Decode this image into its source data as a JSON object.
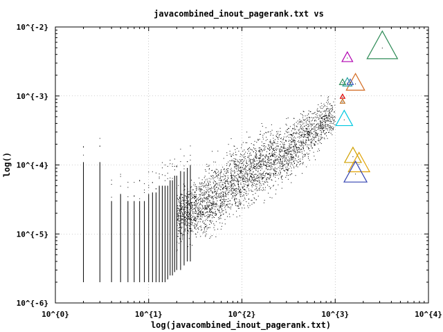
{
  "chart_data": {
    "type": "scatter",
    "title": "javacombined_inout_pagerank.txt vs",
    "xlabel": "log(javacombined_inout_pagerank.txt)",
    "ylabel": "log()",
    "xscale": "log",
    "yscale": "log",
    "xlim": [
      1,
      10000
    ],
    "ylim": [
      1e-06,
      0.01
    ],
    "x_ticks": [
      "10^{0}",
      "10^{1}",
      "10^{2}",
      "10^{3}",
      "10^{4}"
    ],
    "y_ticks": [
      "10^{-6}",
      "10^{-5}",
      "10^{-4}",
      "10^{-3}",
      "10^{-2}"
    ],
    "grid": true,
    "legend": "none",
    "columns": [
      {
        "x": 2,
        "y_min": 2e-06,
        "y_max": 0.00011
      },
      {
        "x": 3,
        "y_min": 2e-06,
        "y_max": 0.00011
      },
      {
        "x": 4,
        "y_min": 2e-06,
        "y_max": 3e-05
      },
      {
        "x": 5,
        "y_min": 2e-06,
        "y_max": 3.8e-05
      },
      {
        "x": 6,
        "y_min": 2e-06,
        "y_max": 3e-05
      },
      {
        "x": 7,
        "y_min": 2e-06,
        "y_max": 3e-05
      },
      {
        "x": 8,
        "y_min": 2e-06,
        "y_max": 3e-05
      },
      {
        "x": 9,
        "y_min": 2e-06,
        "y_max": 3e-05
      },
      {
        "x": 10,
        "y_min": 2e-06,
        "y_max": 3.8e-05
      },
      {
        "x": 11,
        "y_min": 2e-06,
        "y_max": 4e-05
      },
      {
        "x": 12,
        "y_min": 2e-06,
        "y_max": 4e-05
      },
      {
        "x": 13,
        "y_min": 2e-06,
        "y_max": 5e-05
      },
      {
        "x": 14,
        "y_min": 2e-06,
        "y_max": 5e-05
      },
      {
        "x": 15,
        "y_min": 2e-06,
        "y_max": 5e-05
      },
      {
        "x": 16,
        "y_min": 2.2e-06,
        "y_max": 5e-05
      },
      {
        "x": 17,
        "y_min": 2.5e-06,
        "y_max": 6e-05
      },
      {
        "x": 18,
        "y_min": 2.5e-06,
        "y_max": 6e-05
      },
      {
        "x": 19,
        "y_min": 2.8e-06,
        "y_max": 7e-05
      },
      {
        "x": 20,
        "y_min": 3e-06,
        "y_max": 7e-05
      },
      {
        "x": 22,
        "y_min": 3e-06,
        "y_max": 8e-05
      },
      {
        "x": 24,
        "y_min": 3.5e-06,
        "y_max": 8e-05
      },
      {
        "x": 26,
        "y_min": 4e-06,
        "y_max": 9e-05
      },
      {
        "x": 28,
        "y_min": 4e-06,
        "y_max": 0.0001
      }
    ],
    "cloud_band": [
      {
        "x": 20,
        "y_lo": 3e-06,
        "y_hi": 0.0001
      },
      {
        "x": 50,
        "y_lo": 4e-06,
        "y_hi": 0.00025
      },
      {
        "x": 100,
        "y_lo": 1e-05,
        "y_hi": 0.0005
      },
      {
        "x": 300,
        "y_lo": 2.5e-05,
        "y_hi": 0.0009
      },
      {
        "x": 1000,
        "y_lo": 0.0002,
        "y_hi": 0.0016
      }
    ],
    "highlight_points": [
      {
        "x": 3200,
        "y": 0.0055,
        "size": 40,
        "color": "#2e8b57"
      },
      {
        "x": 1350,
        "y": 0.0037,
        "size": 14,
        "color": "#b000b0"
      },
      {
        "x": 1650,
        "y": 0.0016,
        "size": 24,
        "color": "#d2691e"
      },
      {
        "x": 1350,
        "y": 0.0016,
        "size": 12,
        "color": "#22a0a0"
      },
      {
        "x": 1200,
        "y": 0.0016,
        "size": 8,
        "color": "#2e8b57"
      },
      {
        "x": 1450,
        "y": 0.0016,
        "size": 8,
        "color": "#4060c0"
      },
      {
        "x": 1200,
        "y": 0.00099,
        "size": 6,
        "color": "#e00000"
      },
      {
        "x": 1200,
        "y": 0.00084,
        "size": 6,
        "color": "#c07020"
      },
      {
        "x": 1250,
        "y": 0.00048,
        "size": 22,
        "color": "#00c8e0"
      },
      {
        "x": 1800,
        "y": 0.00011,
        "size": 28,
        "color": "#e0a000"
      },
      {
        "x": 1550,
        "y": 0.00014,
        "size": 22,
        "color": "#d0a000"
      },
      {
        "x": 1650,
        "y": 8e-05,
        "size": 30,
        "color": "#3040b0"
      }
    ]
  }
}
